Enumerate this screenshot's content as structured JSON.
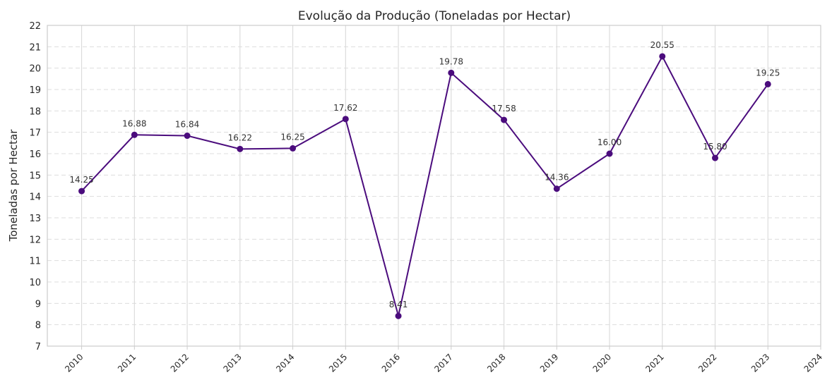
{
  "chart_data": {
    "type": "line",
    "title": "Evolução da Produção (Toneladas por Hectar)",
    "xlabel": "",
    "ylabel": "Toneladas por Hectar",
    "x_ticks": [
      "2010",
      "2011",
      "2012",
      "2013",
      "2014",
      "2015",
      "2016",
      "2017",
      "2018",
      "2019",
      "2020",
      "2021",
      "2022",
      "2023",
      "2024"
    ],
    "y_ticks": [
      "7",
      "8",
      "9",
      "10",
      "11",
      "12",
      "13",
      "14",
      "15",
      "16",
      "17",
      "18",
      "19",
      "20",
      "21",
      "22"
    ],
    "xlim": [
      2009.35,
      2024
    ],
    "ylim": [
      7,
      22
    ],
    "grid": true,
    "color": "#4b0c7d",
    "series": [
      {
        "x": [
          2010,
          2011,
          2012,
          2013,
          2014,
          2015,
          2016,
          2017,
          2018,
          2019,
          2020,
          2021,
          2022,
          2023
        ],
        "values": [
          14.25,
          16.88,
          16.84,
          16.22,
          16.25,
          17.62,
          8.41,
          19.78,
          17.58,
          14.36,
          16.0,
          20.55,
          15.8,
          19.25
        ],
        "labels": [
          "14.25",
          "16.88",
          "16.84",
          "16.22",
          "16.25",
          "17.62",
          "8.41",
          "19.78",
          "17.58",
          "14.36",
          "16.00",
          "20.55",
          "15.80",
          "19.25"
        ]
      }
    ]
  }
}
